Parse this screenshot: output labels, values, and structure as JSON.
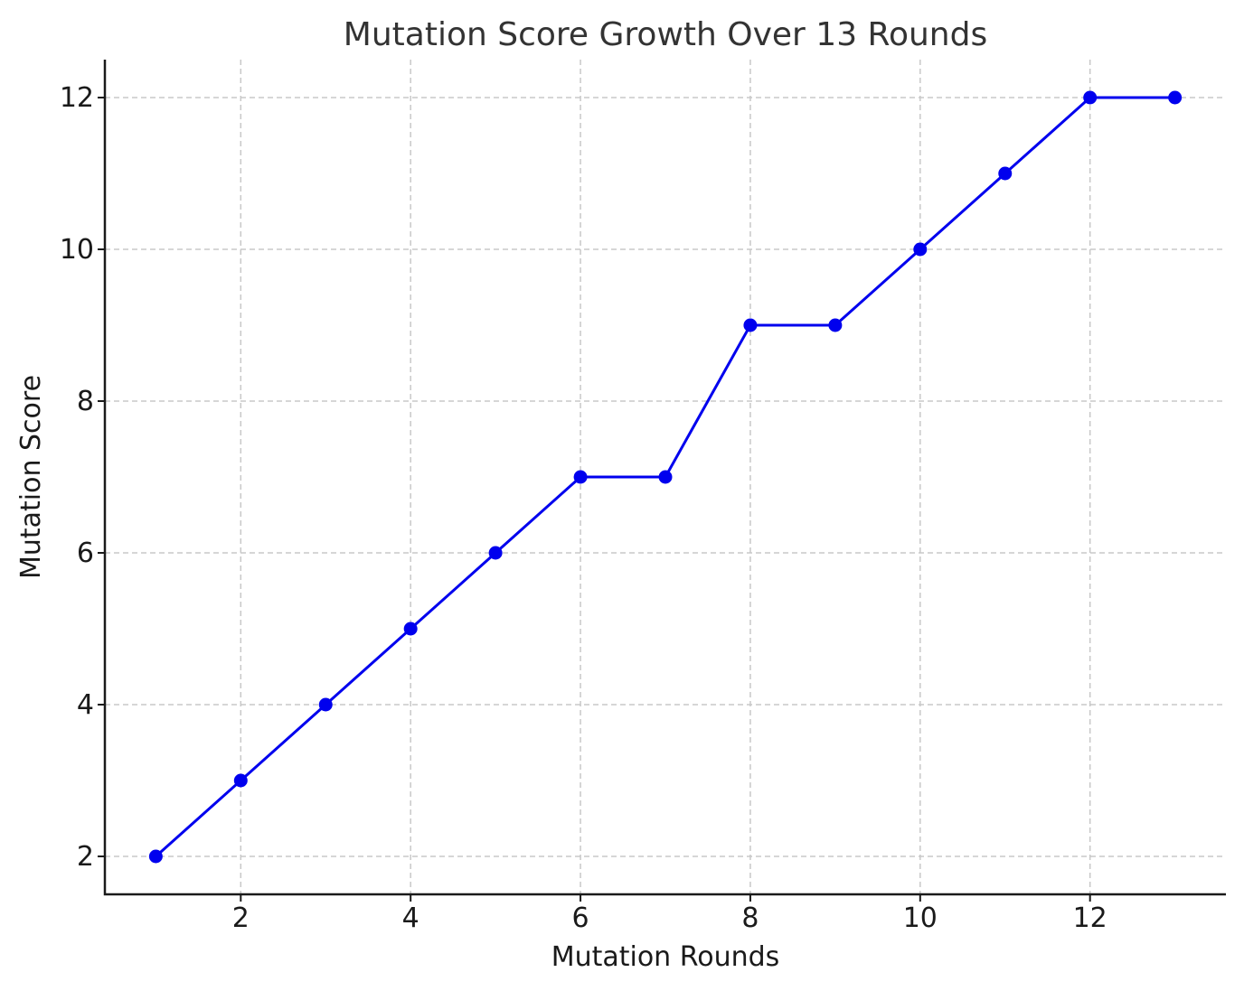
{
  "chart_data": {
    "type": "line",
    "title": "Mutation Score Growth Over 13 Rounds",
    "xlabel": "Mutation Rounds",
    "ylabel": "Mutation Score",
    "x": [
      1,
      2,
      3,
      4,
      5,
      6,
      7,
      8,
      9,
      10,
      11,
      12,
      13
    ],
    "series": [
      {
        "values": [
          2,
          3,
          4,
          5,
          6,
          7,
          7,
          9,
          9,
          10,
          11,
          12,
          12
        ],
        "color": "#0000ee",
        "marker": "circle"
      }
    ],
    "xlim": [
      0.4,
      13.6
    ],
    "ylim": [
      1.5,
      12.5
    ],
    "xticks": [
      2,
      4,
      6,
      8,
      10,
      12
    ],
    "yticks": [
      2,
      4,
      6,
      8,
      10,
      12
    ],
    "xtick_labels": [
      "2",
      "4",
      "6",
      "8",
      "10",
      "12"
    ],
    "ytick_labels": [
      "2",
      "4",
      "6",
      "8",
      "10",
      "12"
    ],
    "grid": true
  }
}
